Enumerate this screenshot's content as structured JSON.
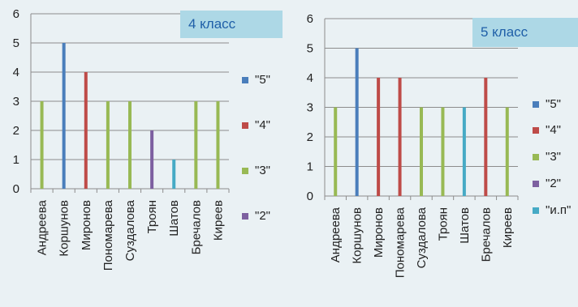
{
  "chart_data": [
    {
      "type": "bar",
      "title": "4 класс",
      "categories": [
        "Андреева",
        "Коршунов",
        "Миронов",
        "Пономарева",
        "Суздалова",
        "Троян",
        "Шатов",
        "Бречалов",
        "Киреев"
      ],
      "series": [
        {
          "name": "\"5\"",
          "color": "#4a7ebb",
          "values": [
            null,
            5,
            null,
            null,
            null,
            null,
            null,
            null,
            null
          ]
        },
        {
          "name": "\"4\"",
          "color": "#be4b48",
          "values": [
            null,
            null,
            4,
            null,
            null,
            null,
            null,
            null,
            null
          ]
        },
        {
          "name": "\"3\"",
          "color": "#98b954",
          "values": [
            3,
            null,
            null,
            3,
            3,
            null,
            null,
            3,
            3
          ]
        },
        {
          "name": "\"2\"",
          "color": "#7d60a0",
          "values": [
            null,
            null,
            null,
            null,
            null,
            2,
            null,
            null,
            null
          ]
        },
        {
          "name": "",
          "color": "#46aac5",
          "values": [
            null,
            null,
            null,
            null,
            null,
            null,
            1,
            null,
            null
          ]
        }
      ],
      "ylim": [
        0,
        6
      ],
      "yticks": [
        0,
        1,
        2,
        3,
        4,
        5,
        6
      ],
      "grid": true,
      "legend": "right"
    },
    {
      "type": "bar",
      "title": "5 класс",
      "categories": [
        "Андреева",
        "Коршунов",
        "Миронов",
        "Пономарева",
        "Суздалова",
        "Троян",
        "Шатов",
        "Бречалов",
        "Киреев"
      ],
      "series": [
        {
          "name": "\"5\"",
          "color": "#4a7ebb",
          "values": [
            null,
            5,
            null,
            null,
            null,
            null,
            null,
            null,
            null
          ]
        },
        {
          "name": "\"4\"",
          "color": "#be4b48",
          "values": [
            null,
            null,
            4,
            4,
            null,
            null,
            null,
            4,
            null
          ]
        },
        {
          "name": "\"3\"",
          "color": "#98b954",
          "values": [
            3,
            null,
            null,
            null,
            3,
            3,
            null,
            null,
            3
          ]
        },
        {
          "name": "\"2\"",
          "color": "#7d60a0",
          "values": [
            null,
            null,
            null,
            null,
            null,
            null,
            null,
            null,
            null
          ]
        },
        {
          "name": "\"и.п\"",
          "color": "#46aac5",
          "values": [
            null,
            null,
            null,
            null,
            null,
            null,
            3,
            null,
            null
          ]
        }
      ],
      "ylim": [
        0,
        6
      ],
      "yticks": [
        0,
        1,
        2,
        3,
        4,
        5,
        6
      ],
      "grid": true,
      "legend": "right"
    }
  ]
}
